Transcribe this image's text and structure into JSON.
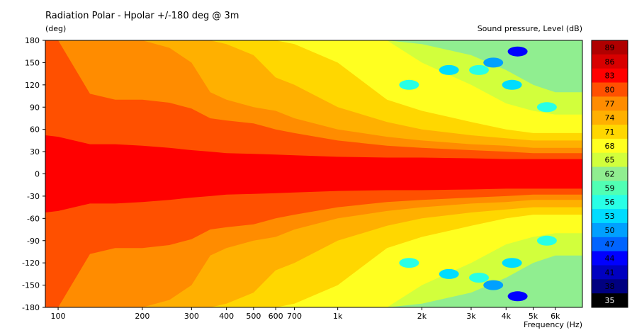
{
  "chart_data": {
    "type": "heatmap",
    "title": "Radiation Polar - Hpolar +/-180 deg @ 3m",
    "ylabel": "(deg)",
    "xlabel": "Frequency  (Hz)",
    "colorbar_label": "Sound pressure, Level  (dB)",
    "x_scale": "log",
    "xlim": [
      90,
      7500
    ],
    "ylim": [
      -180,
      180
    ],
    "x_ticks": [
      100,
      200,
      300,
      400,
      500,
      600,
      700,
      1000,
      2000,
      3000,
      4000,
      5000,
      6000
    ],
    "x_tick_labels": [
      "100",
      "200",
      "300",
      "400",
      "500",
      "600",
      "700",
      "1k",
      "2k",
      "3k",
      "4k",
      "5k",
      "6k"
    ],
    "y_ticks": [
      180,
      150,
      120,
      90,
      60,
      30,
      0,
      -30,
      -60,
      -90,
      -120,
      -150,
      -180
    ],
    "level_scale": [
      {
        "label": "89",
        "color": "#b00000"
      },
      {
        "label": "86",
        "color": "#d80000"
      },
      {
        "label": "83",
        "color": "#ff0000"
      },
      {
        "label": "80",
        "color": "#ff5000"
      },
      {
        "label": "77",
        "color": "#ff8c00"
      },
      {
        "label": "74",
        "color": "#ffb000"
      },
      {
        "label": "71",
        "color": "#ffd700"
      },
      {
        "label": "68",
        "color": "#ffff20"
      },
      {
        "label": "65",
        "color": "#d2ff3c"
      },
      {
        "label": "62",
        "color": "#90ee90"
      },
      {
        "label": "59",
        "color": "#50ffb4"
      },
      {
        "label": "56",
        "color": "#28ffe6"
      },
      {
        "label": "53",
        "color": "#00dcff"
      },
      {
        "label": "50",
        "color": "#00a0ff"
      },
      {
        "label": "47",
        "color": "#0064ff"
      },
      {
        "label": "44",
        "color": "#0000ff"
      },
      {
        "label": "41",
        "color": "#0000c0"
      },
      {
        "label": "38",
        "color": "#000080"
      },
      {
        "label": "35",
        "color": "#000000"
      }
    ],
    "contour_profile": {
      "description_free": true,
      "frequencies_hz": [
        90,
        100,
        130,
        160,
        200,
        250,
        300,
        350,
        400,
        500,
        600,
        700,
        1000,
        1500,
        2000,
        3000,
        4000,
        5000,
        6000,
        7500
      ],
      "level_83_halfwidth_deg": [
        52,
        50,
        40,
        40,
        38,
        35,
        32,
        30,
        28,
        27,
        26,
        25,
        23,
        22,
        22,
        21,
        20,
        20,
        20,
        20
      ],
      "level_80_halfwidth_deg": [
        180,
        180,
        108,
        100,
        100,
        96,
        88,
        75,
        72,
        68,
        60,
        55,
        45,
        38,
        35,
        32,
        30,
        28,
        28,
        28
      ],
      "level_77_halfwidth_deg": [
        180,
        180,
        180,
        180,
        180,
        170,
        150,
        110,
        100,
        90,
        85,
        75,
        60,
        50,
        45,
        40,
        38,
        35,
        35,
        35
      ],
      "level_74_halfwidth_deg": [
        180,
        180,
        180,
        180,
        180,
        180,
        180,
        180,
        175,
        160,
        130,
        120,
        90,
        70,
        60,
        52,
        48,
        45,
        45,
        45
      ],
      "level_71_halfwidth_deg": [
        180,
        180,
        180,
        180,
        180,
        180,
        180,
        180,
        180,
        180,
        180,
        175,
        150,
        100,
        85,
        70,
        60,
        55,
        55,
        55
      ],
      "level_68_halfwidth_deg": [
        180,
        180,
        180,
        180,
        180,
        180,
        180,
        180,
        180,
        180,
        180,
        180,
        180,
        180,
        150,
        120,
        95,
        85,
        80,
        80
      ],
      "level_65_halfwidth_deg": [
        180,
        180,
        180,
        180,
        180,
        180,
        180,
        180,
        180,
        180,
        180,
        180,
        180,
        180,
        175,
        160,
        140,
        120,
        110,
        110
      ]
    }
  }
}
